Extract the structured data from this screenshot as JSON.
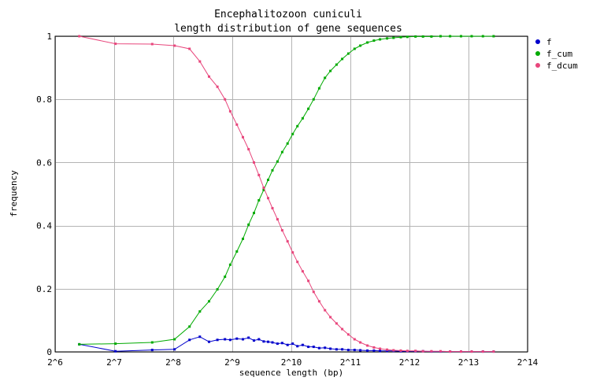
{
  "chart_data": {
    "type": "line",
    "title": "Encephalitozoon cuniculi",
    "subtitle": "length distribution of gene sequences",
    "xlabel": "sequence length (bp)",
    "ylabel": "frequency",
    "x_scale": "log2",
    "xlim": [
      64,
      16384
    ],
    "ylim": [
      0,
      1
    ],
    "x_ticks": [
      64,
      128,
      256,
      512,
      1024,
      2048,
      4096,
      8192,
      16384
    ],
    "x_tick_labels": [
      "2^6",
      "2^7",
      "2^8",
      "2^9",
      "2^10",
      "2^11",
      "2^12",
      "2^13",
      "2^14"
    ],
    "y_ticks": [
      0,
      0.2,
      0.4,
      0.6,
      0.8,
      1
    ],
    "y_tick_labels": [
      "0",
      "0.2",
      "0.4",
      "0.6",
      "0.8",
      "1"
    ],
    "grid": true,
    "legend_position": "right",
    "series": [
      {
        "name": "f",
        "color": "#0000cc",
        "x": [
          85,
          130,
          200,
          260,
          310,
          350,
          390,
          430,
          470,
          500,
          540,
          580,
          620,
          660,
          700,
          740,
          780,
          820,
          870,
          920,
          980,
          1040,
          1100,
          1170,
          1250,
          1330,
          1420,
          1520,
          1620,
          1740,
          1860,
          2000,
          2150,
          2300,
          2500,
          2700,
          2900,
          3150,
          3400,
          3700,
          4000,
          4400,
          4800,
          5300,
          5900,
          6600,
          7500,
          8500,
          9700,
          11000
        ],
        "y": [
          0.024,
          0.002,
          0.006,
          0.008,
          0.038,
          0.048,
          0.032,
          0.038,
          0.04,
          0.038,
          0.042,
          0.04,
          0.045,
          0.036,
          0.04,
          0.033,
          0.032,
          0.03,
          0.026,
          0.028,
          0.022,
          0.026,
          0.018,
          0.022,
          0.016,
          0.016,
          0.012,
          0.013,
          0.01,
          0.008,
          0.008,
          0.006,
          0.006,
          0.005,
          0.004,
          0.004,
          0.003,
          0.003,
          0.003,
          0.002,
          0.002,
          0.002,
          0.002,
          0.001,
          0.001,
          0.001,
          0.001,
          0.001,
          0.001,
          0.001
        ]
      },
      {
        "name": "f_cum",
        "color": "#00aa00",
        "x": [
          85,
          130,
          200,
          260,
          310,
          350,
          390,
          430,
          470,
          500,
          540,
          580,
          620,
          660,
          700,
          740,
          780,
          820,
          870,
          920,
          980,
          1040,
          1100,
          1170,
          1250,
          1330,
          1420,
          1520,
          1620,
          1740,
          1860,
          2000,
          2150,
          2300,
          2500,
          2700,
          2900,
          3150,
          3400,
          3700,
          4000,
          4400,
          4800,
          5300,
          5900,
          6600,
          7500,
          8500,
          9700,
          11000
        ],
        "y": [
          0.024,
          0.026,
          0.03,
          0.04,
          0.08,
          0.128,
          0.16,
          0.198,
          0.238,
          0.276,
          0.318,
          0.358,
          0.403,
          0.44,
          0.48,
          0.513,
          0.545,
          0.575,
          0.603,
          0.633,
          0.66,
          0.69,
          0.715,
          0.74,
          0.77,
          0.8,
          0.835,
          0.868,
          0.89,
          0.91,
          0.928,
          0.945,
          0.96,
          0.97,
          0.98,
          0.986,
          0.99,
          0.993,
          0.995,
          0.997,
          0.998,
          0.999,
          0.999,
          0.999,
          1,
          1,
          1,
          1,
          1,
          1
        ]
      },
      {
        "name": "f_dcum",
        "color": "#e8467c",
        "x": [
          85,
          130,
          200,
          260,
          310,
          350,
          390,
          430,
          470,
          500,
          540,
          580,
          620,
          660,
          700,
          740,
          780,
          820,
          870,
          920,
          980,
          1040,
          1100,
          1170,
          1250,
          1330,
          1420,
          1520,
          1620,
          1740,
          1860,
          2000,
          2150,
          2300,
          2500,
          2700,
          2900,
          3150,
          3400,
          3700,
          4000,
          4400,
          4800,
          5300,
          5900,
          6600,
          7500,
          8500,
          9700,
          11000
        ],
        "y": [
          1,
          0.976,
          0.975,
          0.97,
          0.96,
          0.92,
          0.872,
          0.84,
          0.8,
          0.762,
          0.72,
          0.68,
          0.642,
          0.6,
          0.56,
          0.52,
          0.487,
          0.455,
          0.42,
          0.385,
          0.35,
          0.315,
          0.285,
          0.255,
          0.225,
          0.19,
          0.16,
          0.132,
          0.11,
          0.09,
          0.072,
          0.055,
          0.04,
          0.03,
          0.02,
          0.014,
          0.01,
          0.007,
          0.005,
          0.004,
          0.003,
          0.003,
          0.002,
          0.002,
          0.002,
          0.001,
          0.001,
          0.001,
          0.001,
          0.001
        ]
      }
    ]
  }
}
